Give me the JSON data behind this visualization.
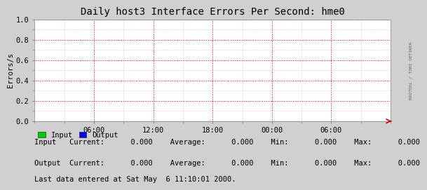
{
  "title": "Daily host3 Interface Errors Per Second: hme0",
  "ylabel": "Errors/s",
  "bg_color": "#d0d0d0",
  "plot_bg_color": "#ffffff",
  "grid_major_color": "#cc0000",
  "grid_minor_color": "#cc9999",
  "line_color_input": "#00cc00",
  "line_color_output": "#0000ff",
  "arrow_color": "#cc0000",
  "ylim": [
    0.0,
    1.0
  ],
  "yticks": [
    0.0,
    0.2,
    0.4,
    0.6,
    0.8,
    1.0
  ],
  "xtick_labels": [
    "06:00",
    "12:00",
    "18:00",
    "00:00",
    "06:00"
  ],
  "xtick_positions": [
    1,
    2,
    3,
    4,
    5
  ],
  "xlim": [
    0,
    6
  ],
  "watermark": "RRDTOOL / TOBI OETIKER",
  "legend_input": "Input",
  "legend_output": "Output",
  "input_line1": "Input   Current:      0.000    Average:      0.000    Min:      0.000    Max:      0.000",
  "output_line1": "Output  Current:      0.000    Average:      0.000    Min:      0.000    Max:      0.000",
  "footer_text": "Last data entered at Sat May  6 11:10:01 2000.",
  "title_fontsize": 10,
  "axis_fontsize": 7.5,
  "stats_fontsize": 7.5
}
